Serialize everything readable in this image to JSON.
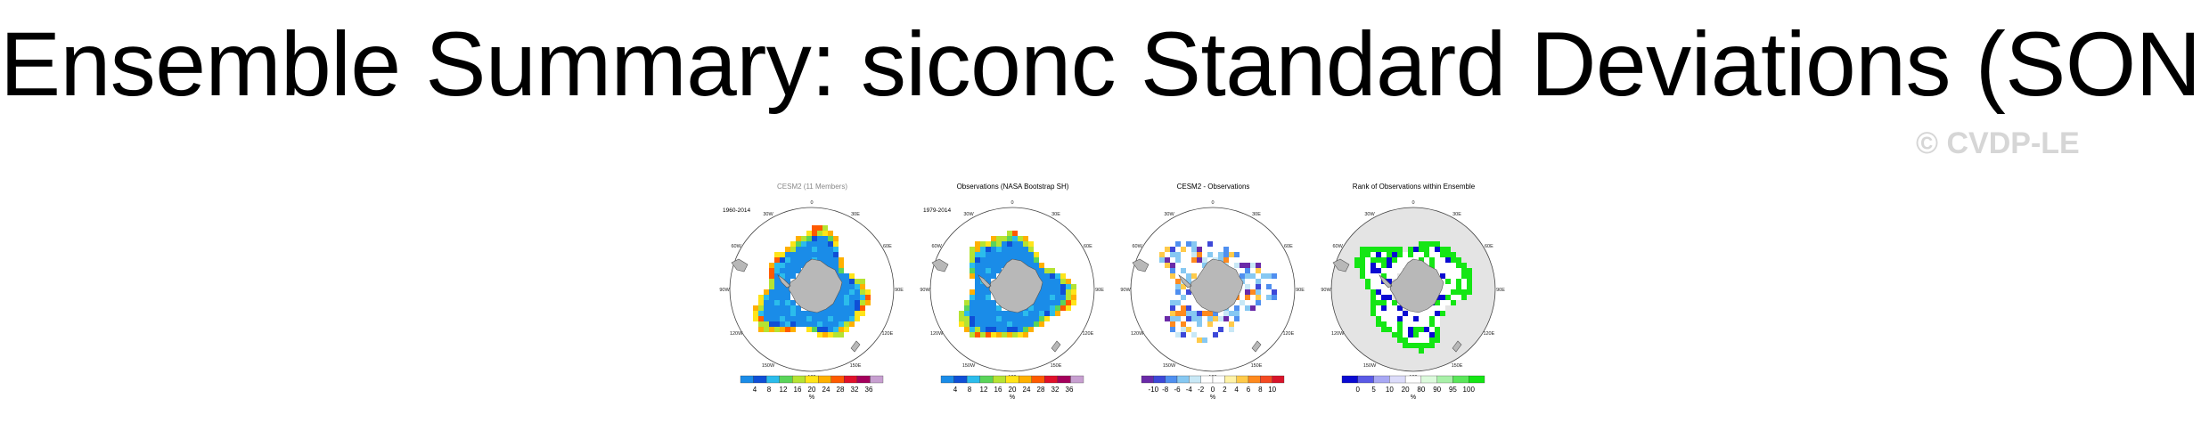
{
  "title": "Ensemble Summary: siconc Standard Deviations (SON)",
  "watermark": "© CVDP-LE",
  "lon_labels": [
    "0",
    "30E",
    "60E",
    "90E",
    "120E",
    "150E",
    "180",
    "150W",
    "120W",
    "90W",
    "60W",
    "30W"
  ],
  "panels": [
    {
      "title": "CESM2 (11 Members)",
      "period": "1960-2014",
      "colorbar_labels": [
        "4",
        "8",
        "12",
        "16",
        "20",
        "24",
        "28",
        "32",
        "36"
      ],
      "units": "%",
      "colors": [
        "#1a8ce8",
        "#0f4fd6",
        "#2bbcec",
        "#5ad45a",
        "#b5e332",
        "#ffe419",
        "#ffb000",
        "#ff5a00",
        "#e0102a",
        "#a4005c",
        "#c79fd0"
      ]
    },
    {
      "title": "Observations (NASA Bootstrap SH)",
      "period": "1979-2014",
      "colorbar_labels": [
        "4",
        "8",
        "12",
        "16",
        "20",
        "24",
        "28",
        "32",
        "36"
      ],
      "units": "%",
      "colors": [
        "#1a8ce8",
        "#0f4fd6",
        "#2bbcec",
        "#5ad45a",
        "#b5e332",
        "#ffe419",
        "#ffb000",
        "#ff5a00",
        "#e0102a",
        "#a4005c",
        "#c79fd0"
      ]
    },
    {
      "title": "CESM2 - Observations",
      "period": "",
      "colorbar_labels": [
        "-10",
        "-8",
        "-6",
        "-4",
        "-2",
        "0",
        "2",
        "4",
        "6",
        "8",
        "10"
      ],
      "units": "%",
      "colors": [
        "#6a2aa8",
        "#3d48d8",
        "#4f8ff0",
        "#86c8f2",
        "#c8e8f6",
        "#ffffff",
        "#ffffff",
        "#fff3a8",
        "#ffca4a",
        "#ff8a1e",
        "#f44a22",
        "#d8142a"
      ]
    },
    {
      "title": "Rank of Observations within Ensemble",
      "period": "",
      "colorbar_labels": [
        "0",
        "5",
        "10",
        "20",
        "80",
        "90",
        "95",
        "100"
      ],
      "units": "%",
      "colors": [
        "#0a0ad2",
        "#5a5ae6",
        "#a8a8f4",
        "#dcdcfa",
        "#ffffff",
        "#dcfadc",
        "#a8f0a8",
        "#5ae65a",
        "#14e614"
      ]
    }
  ]
}
